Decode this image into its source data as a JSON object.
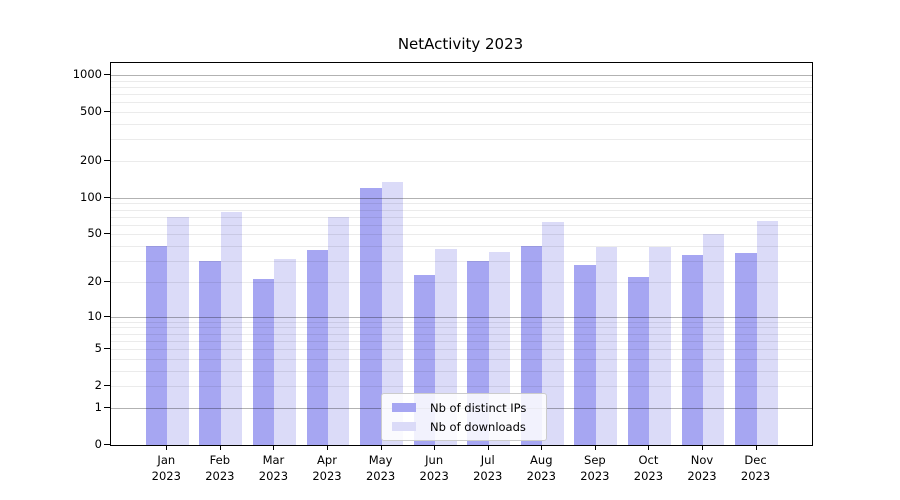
{
  "title": "NetActivity 2023",
  "chart_data": {
    "type": "bar",
    "categories": [
      "Jan",
      "Feb",
      "Mar",
      "Apr",
      "May",
      "Jun",
      "Jul",
      "Aug",
      "Sep",
      "Oct",
      "Nov",
      "Dec"
    ],
    "category_year": "2023",
    "series": [
      {
        "name": "Nb of distinct IPs",
        "color": "#a6a6f2",
        "values": [
          40,
          30,
          21,
          37,
          120,
          23,
          30,
          40,
          28,
          22,
          34,
          35
        ]
      },
      {
        "name": "Nb of downloads",
        "color": "#dbdbf8",
        "values": [
          70,
          76,
          31,
          70,
          135,
          38,
          36,
          63,
          39,
          39,
          50,
          64
        ]
      }
    ],
    "title": "NetActivity 2023",
    "xlabel": "",
    "ylabel": "",
    "yscale": "log10(value+1)",
    "ylim": [
      0,
      1236
    ],
    "y_ticks": [
      0,
      1,
      2,
      5,
      10,
      20,
      50,
      100,
      200,
      500,
      1000
    ],
    "y_major_gridlines": [
      1,
      10,
      100,
      1000
    ],
    "grid": "horizontal major+minor, drawn over bars",
    "legend_position": "lower center inside plot"
  },
  "legend": {
    "items": [
      {
        "label": "Nb of distinct IPs"
      },
      {
        "label": "Nb of downloads"
      }
    ]
  }
}
